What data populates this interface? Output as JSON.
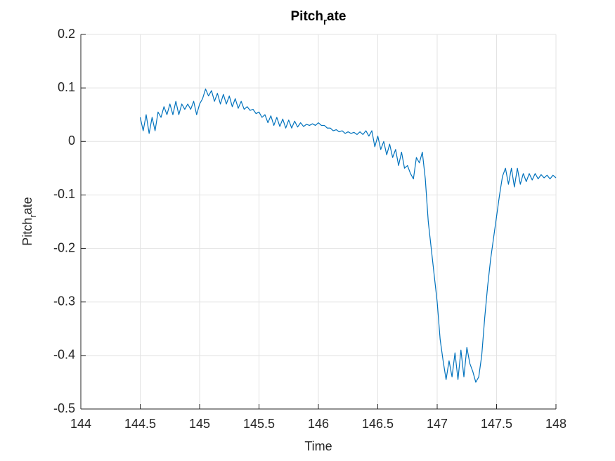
{
  "chart_data": {
    "type": "line",
    "title": [
      "Pitch",
      "r",
      "ate"
    ],
    "xlabel": "Time",
    "ylabel": [
      "Pitch",
      "r",
      "ate"
    ],
    "color": "#0072bd",
    "grid": true,
    "xlim": [
      144,
      148
    ],
    "xticks": [
      144,
      144.5,
      145,
      145.5,
      146,
      146.5,
      147,
      147.5,
      148
    ],
    "ylim": [
      -0.5,
      0.2
    ],
    "yticks": [
      -0.5,
      -0.4,
      -0.3,
      -0.2,
      -0.1,
      0,
      0.1,
      0.2
    ],
    "x": [
      144.5,
      144.525,
      144.55,
      144.575,
      144.6,
      144.625,
      144.65,
      144.675,
      144.7,
      144.725,
      144.75,
      144.775,
      144.8,
      144.825,
      144.85,
      144.875,
      144.9,
      144.925,
      144.95,
      144.975,
      145,
      145.025,
      145.05,
      145.075,
      145.1,
      145.125,
      145.15,
      145.175,
      145.2,
      145.225,
      145.25,
      145.275,
      145.3,
      145.325,
      145.35,
      145.375,
      145.4,
      145.425,
      145.45,
      145.475,
      145.5,
      145.525,
      145.55,
      145.575,
      145.6,
      145.625,
      145.65,
      145.675,
      145.7,
      145.725,
      145.75,
      145.775,
      145.8,
      145.825,
      145.85,
      145.875,
      145.9,
      145.925,
      145.95,
      145.975,
      146,
      146.025,
      146.05,
      146.075,
      146.1,
      146.125,
      146.15,
      146.175,
      146.2,
      146.225,
      146.25,
      146.275,
      146.3,
      146.325,
      146.35,
      146.375,
      146.4,
      146.425,
      146.45,
      146.475,
      146.5,
      146.525,
      146.55,
      146.575,
      146.6,
      146.625,
      146.65,
      146.675,
      146.7,
      146.725,
      146.75,
      146.775,
      146.8,
      146.825,
      146.85,
      146.875,
      146.9,
      146.925,
      146.95,
      146.975,
      147,
      147.025,
      147.05,
      147.075,
      147.1,
      147.125,
      147.15,
      147.175,
      147.2,
      147.225,
      147.25,
      147.275,
      147.3,
      147.325,
      147.35,
      147.375,
      147.4,
      147.425,
      147.45,
      147.475,
      147.5,
      147.525,
      147.55,
      147.575,
      147.6,
      147.625,
      147.65,
      147.675,
      147.7,
      147.725,
      147.75,
      147.775,
      147.8,
      147.825,
      147.85,
      147.875,
      147.9,
      147.925,
      147.95,
      147.975,
      148
    ],
    "values": [
      0.045,
      0.02,
      0.05,
      0.015,
      0.045,
      0.02,
      0.055,
      0.045,
      0.065,
      0.05,
      0.07,
      0.05,
      0.075,
      0.05,
      0.07,
      0.06,
      0.07,
      0.06,
      0.075,
      0.05,
      0.07,
      0.08,
      0.098,
      0.085,
      0.095,
      0.075,
      0.09,
      0.07,
      0.088,
      0.07,
      0.085,
      0.065,
      0.08,
      0.062,
      0.075,
      0.06,
      0.065,
      0.058,
      0.06,
      0.052,
      0.055,
      0.045,
      0.05,
      0.035,
      0.048,
      0.03,
      0.045,
      0.028,
      0.042,
      0.025,
      0.04,
      0.025,
      0.038,
      0.027,
      0.035,
      0.028,
      0.032,
      0.03,
      0.033,
      0.03,
      0.035,
      0.03,
      0.03,
      0.025,
      0.025,
      0.02,
      0.022,
      0.018,
      0.02,
      0.015,
      0.018,
      0.015,
      0.017,
      0.013,
      0.018,
      0.013,
      0.02,
      0.01,
      0.02,
      -0.01,
      0.01,
      -0.015,
      0,
      -0.025,
      -0.005,
      -0.03,
      -0.015,
      -0.045,
      -0.02,
      -0.05,
      -0.045,
      -0.06,
      -0.07,
      -0.03,
      -0.04,
      -0.02,
      -0.07,
      -0.15,
      -0.2,
      -0.25,
      -0.3,
      -0.37,
      -0.41,
      -0.445,
      -0.41,
      -0.44,
      -0.395,
      -0.445,
      -0.39,
      -0.44,
      -0.385,
      -0.415,
      -0.43,
      -0.45,
      -0.44,
      -0.4,
      -0.33,
      -0.27,
      -0.22,
      -0.18,
      -0.14,
      -0.1,
      -0.065,
      -0.05,
      -0.08,
      -0.05,
      -0.085,
      -0.05,
      -0.08,
      -0.06,
      -0.075,
      -0.06,
      -0.072,
      -0.06,
      -0.07,
      -0.062,
      -0.068,
      -0.063,
      -0.07,
      -0.063,
      -0.068
    ]
  }
}
